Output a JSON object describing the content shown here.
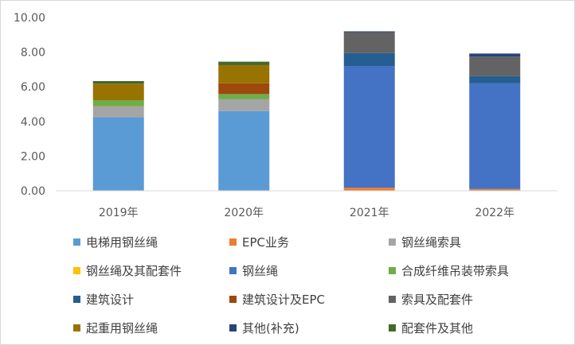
{
  "chart_data": {
    "type": "bar",
    "stacked": true,
    "categories": [
      "2019年",
      "2020年",
      "2021年",
      "2022年"
    ],
    "ylim": [
      0,
      10
    ],
    "yticks": [
      "0.00",
      "2.00",
      "4.00",
      "6.00",
      "8.00",
      "10.00"
    ],
    "grid": false,
    "legend_position": "bottom",
    "series": [
      {
        "name": "电梯用钢丝绳",
        "color": "#5b9bd5",
        "values": [
          4.25,
          4.6,
          0,
          0
        ]
      },
      {
        "name": "EPC业务",
        "color": "#ed7d31",
        "values": [
          0,
          0,
          0.18,
          0.1
        ]
      },
      {
        "name": "钢丝绳索具",
        "color": "#a5a5a5",
        "values": [
          0.62,
          0.68,
          0,
          0
        ]
      },
      {
        "name": "钢丝绳及其配套件",
        "color": "#ffc000",
        "values": [
          0,
          0,
          0,
          0
        ]
      },
      {
        "name": "钢丝绳",
        "color": "#4472c4",
        "values": [
          0,
          0,
          7.02,
          6.1
        ]
      },
      {
        "name": "合成纤维吊装带索具",
        "color": "#70ad47",
        "values": [
          0.36,
          0.3,
          0,
          0
        ]
      },
      {
        "name": "建筑设计",
        "color": "#255e91",
        "values": [
          0,
          0,
          0.75,
          0.42
        ]
      },
      {
        "name": "建筑设计及EPC",
        "color": "#9e480e",
        "values": [
          0,
          0.62,
          0,
          0
        ]
      },
      {
        "name": "索具及配套件",
        "color": "#636363",
        "values": [
          0,
          0,
          1.2,
          1.12
        ]
      },
      {
        "name": "起重用钢丝绳",
        "color": "#997300",
        "values": [
          0.95,
          1.05,
          0,
          0
        ]
      },
      {
        "name": "其他(补充)",
        "color": "#264478",
        "values": [
          0,
          0,
          0.05,
          0.18
        ]
      },
      {
        "name": "配套件及其他",
        "color": "#43682b",
        "values": [
          0.15,
          0.2,
          0,
          0
        ]
      }
    ]
  }
}
